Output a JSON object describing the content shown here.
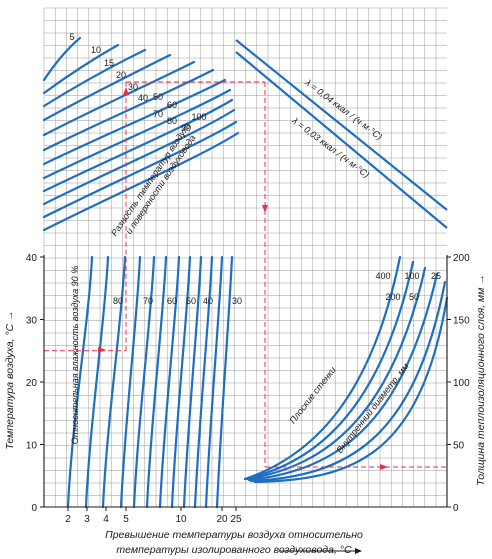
{
  "chart_data": {
    "type": "line",
    "title": "",
    "colors": {
      "curve": "#1f6fc0",
      "grid": "#8e8e8e",
      "axis": "#1a1a1a",
      "guide": "#e4304f",
      "text": "#1a1a1a"
    },
    "left_axis": {
      "label": "Температура воздуха, °C",
      "ticks": [
        "0",
        "10",
        "20",
        "30",
        "40"
      ],
      "range": [
        0,
        40
      ]
    },
    "right_axis": {
      "label": "Толщина теплоизоляционного слоя, мм",
      "ticks": [
        "0",
        "50",
        "100",
        "150",
        "200"
      ],
      "range": [
        0,
        200
      ]
    },
    "x_axis": {
      "label_line1": "Превышение температуры воздуха относительно",
      "label_line2": "температуры изолированного воздуховода, °C",
      "ticks": [
        "2",
        "3",
        "4",
        "5",
        "10",
        "20",
        "25"
      ],
      "scale": "log"
    },
    "humidity_curves": {
      "label": "Относительная влажность воздуха 90 %",
      "values": [
        "80",
        "70",
        "60",
        "50",
        "40",
        "30"
      ]
    },
    "temp_difference_curves": {
      "label": "Разность температур воздуха и поверхности воздуховода",
      "values": [
        "5",
        "10",
        "15",
        "20",
        "30",
        "40",
        "50",
        "60",
        "70",
        "80",
        "90",
        "100"
      ]
    },
    "conductivity_lines": [
      {
        "label": "λ = 0,04 ккал / (ч·м·°C)"
      },
      {
        "label": "λ = 0,03 ккал / (ч·м·°C)"
      }
    ],
    "insulation_curves": {
      "flat_wall_label": "Плоские стенки",
      "diameter_label": "Внутренний диаметр, мм",
      "diameters": [
        "400",
        "200",
        "100",
        "50",
        "25"
      ]
    }
  }
}
